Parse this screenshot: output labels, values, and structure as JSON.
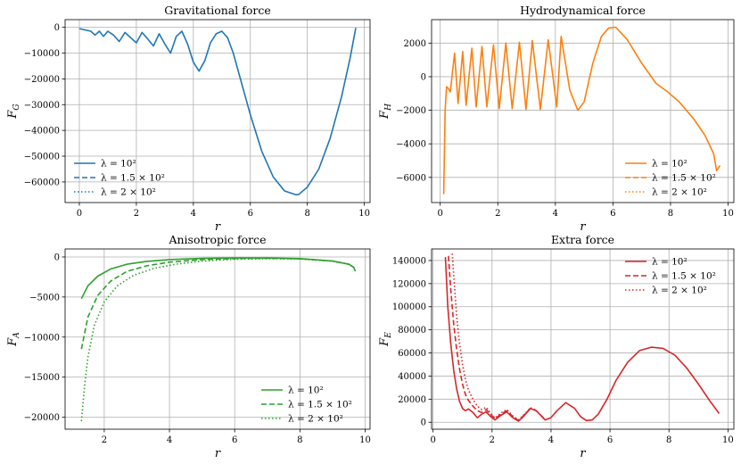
{
  "chart_data": [
    {
      "id": "gravitational",
      "type": "line",
      "title": "Gravitational force",
      "xlabel": "r",
      "ylabel": "F_G",
      "ylabel_main": "F",
      "ylabel_sub": "G",
      "xlim": [
        -0.5,
        10.2
      ],
      "ylim": [
        -68000,
        3000
      ],
      "xticks": [
        0,
        2,
        4,
        6,
        8,
        10
      ],
      "yticks": [
        0,
        -10000,
        -20000,
        -30000,
        -40000,
        -50000,
        -60000
      ],
      "grid": true,
      "color": "#1f77b4",
      "legend_location": "lower-left",
      "legend": [
        "λ = 10²",
        "λ = 1.5 × 10²",
        "λ = 2 × 10²"
      ],
      "series": [
        {
          "name": "λ = 10²",
          "style": "solid",
          "x": [
            0,
            0.2,
            0.4,
            0.55,
            0.7,
            0.85,
            1.0,
            1.2,
            1.4,
            1.6,
            1.8,
            2.0,
            2.2,
            2.4,
            2.6,
            2.8,
            3.0,
            3.2,
            3.4,
            3.6,
            3.8,
            4.0,
            4.2,
            4.4,
            4.6,
            4.8,
            5.0,
            5.2,
            5.4,
            5.6,
            5.8,
            6.0,
            6.4,
            6.8,
            7.2,
            7.6,
            7.7,
            8.0,
            8.4,
            8.8,
            9.2,
            9.5,
            9.7
          ],
          "y": [
            -500,
            -1000,
            -1500,
            -3000,
            -1500,
            -3500,
            -1500,
            -3000,
            -5500,
            -2000,
            -4000,
            -6000,
            -2000,
            -4500,
            -7200,
            -2500,
            -6500,
            -10000,
            -3500,
            -1500,
            -6500,
            -13500,
            -17000,
            -13000,
            -6000,
            -2500,
            -1500,
            -4000,
            -10000,
            -18000,
            -26000,
            -34000,
            -48000,
            -58000,
            -63500,
            -65000,
            -64800,
            -62000,
            -55000,
            -43000,
            -27000,
            -12000,
            -200
          ]
        }
      ]
    },
    {
      "id": "hydrodynamical",
      "type": "line",
      "title": "Hydrodynamical force",
      "xlabel": "r",
      "ylabel": "F_H",
      "ylabel_main": "F",
      "ylabel_sub": "H",
      "xlim": [
        -0.3,
        10.2
      ],
      "ylim": [
        -7500,
        3400
      ],
      "xticks": [
        0,
        2,
        4,
        6,
        8,
        10
      ],
      "yticks": [
        2000,
        0,
        -2000,
        -4000,
        -6000
      ],
      "grid": true,
      "color": "#ff7f0e",
      "legend_location": "lower-right",
      "legend": [
        "λ = 10²",
        "λ = 1.5 × 10²",
        "λ = 2 × 10²"
      ],
      "series": [
        {
          "name": "λ = 10²",
          "style": "solid",
          "x": [
            0.12,
            0.17,
            0.22,
            0.28,
            0.35,
            0.5,
            0.62,
            0.78,
            0.9,
            1.1,
            1.25,
            1.45,
            1.62,
            1.85,
            2.05,
            2.28,
            2.5,
            2.75,
            2.98,
            3.2,
            3.48,
            3.75,
            4.05,
            4.2,
            4.5,
            4.78,
            5.0,
            5.3,
            5.6,
            5.85,
            6.1,
            6.5,
            7.0,
            7.5,
            7.9,
            8.3,
            8.8,
            9.2,
            9.5,
            9.6,
            9.72
          ],
          "y": [
            -7000,
            -2000,
            -600,
            -700,
            -900,
            1400,
            -1600,
            1500,
            -1700,
            1700,
            -1800,
            1800,
            -1800,
            1900,
            -1900,
            2000,
            -1900,
            2050,
            -1950,
            2150,
            -1950,
            2200,
            -1800,
            2400,
            -800,
            -2000,
            -1500,
            800,
            2400,
            2900,
            2950,
            2200,
            800,
            -400,
            -900,
            -1500,
            -2500,
            -3500,
            -4600,
            -5600,
            -5300
          ]
        }
      ]
    },
    {
      "id": "anisotropic",
      "type": "line",
      "title": "Anisotropic force",
      "xlabel": "r",
      "ylabel": "F_A",
      "ylabel_main": "F",
      "ylabel_sub": "A",
      "xlim": [
        0.8,
        10.15
      ],
      "ylim": [
        -21500,
        1000
      ],
      "xticks": [
        2,
        4,
        6,
        8,
        10
      ],
      "yticks": [
        0,
        -5000,
        -10000,
        -15000,
        -20000
      ],
      "grid": true,
      "color": "#2ca02c",
      "legend_location": "lower-right",
      "legend": [
        "λ = 10²",
        "λ = 1.5 × 10²",
        "λ = 2 × 10²"
      ],
      "series": [
        {
          "name": "λ = 10²",
          "style": "solid",
          "x": [
            1.3,
            1.5,
            1.8,
            2.2,
            2.7,
            3.3,
            4.0,
            5.0,
            6.0,
            7.0,
            8.0,
            9.0,
            9.5,
            9.65,
            9.7
          ],
          "y": [
            -5200,
            -3600,
            -2400,
            -1500,
            -900,
            -550,
            -330,
            -180,
            -120,
            -120,
            -200,
            -500,
            -900,
            -1300,
            -1800
          ]
        },
        {
          "name": "λ = 1.5 × 10²",
          "style": "dashed",
          "x": [
            1.3,
            1.5,
            1.8,
            2.2,
            2.7,
            3.3,
            4.0,
            5.0,
            6.0,
            7.0,
            8.0,
            9.0,
            9.5,
            9.65
          ],
          "y": [
            -11500,
            -7500,
            -4800,
            -3000,
            -1800,
            -1100,
            -650,
            -330,
            -200,
            -170,
            -230,
            -520,
            -900,
            -1300
          ]
        },
        {
          "name": "λ = 2 × 10²",
          "style": "dotted",
          "x": [
            1.3,
            1.4,
            1.5,
            1.7,
            2.0,
            2.4,
            2.9,
            3.5,
            4.2,
            5.0,
            6.0,
            7.0,
            8.0,
            9.0,
            9.5,
            9.65
          ],
          "y": [
            -20500,
            -16000,
            -12500,
            -8500,
            -5600,
            -3600,
            -2300,
            -1450,
            -900,
            -520,
            -290,
            -210,
            -250,
            -530,
            -900,
            -1300
          ]
        }
      ]
    },
    {
      "id": "extra",
      "type": "line",
      "title": "Extra force",
      "xlabel": "r",
      "ylabel": "F_E",
      "ylabel_main": "F",
      "ylabel_sub": "E",
      "xlim": [
        -0.05,
        10.2
      ],
      "ylim": [
        -6000,
        150000
      ],
      "xticks": [
        0,
        2,
        4,
        6,
        8,
        10
      ],
      "yticks": [
        0,
        20000,
        40000,
        60000,
        80000,
        100000,
        120000,
        140000
      ],
      "grid": true,
      "color": "#d62728",
      "legend_location": "top-right",
      "legend": [
        "λ = 10²",
        "λ = 1.5 × 10²",
        "λ = 2 × 10²"
      ],
      "series": [
        {
          "name": "λ = 10²",
          "style": "solid",
          "x": [
            0.42,
            0.5,
            0.6,
            0.7,
            0.8,
            0.9,
            1.0,
            1.1,
            1.2,
            1.35,
            1.5,
            1.65,
            1.8,
            1.95,
            2.1,
            2.3,
            2.5,
            2.7,
            2.9,
            3.1,
            3.3,
            3.5,
            3.8,
            4.0,
            4.2,
            4.5,
            4.8,
            5.0,
            5.2,
            5.4,
            5.6,
            5.9,
            6.2,
            6.6,
            7.0,
            7.4,
            7.8,
            8.2,
            8.6,
            9.0,
            9.4,
            9.7
          ],
          "y": [
            143000,
            100000,
            68000,
            45000,
            29000,
            18000,
            12000,
            10000,
            11500,
            8500,
            4000,
            7000,
            9000,
            5000,
            2000,
            6000,
            9000,
            4000,
            1000,
            6000,
            12000,
            10000,
            2000,
            4000,
            10000,
            17000,
            12000,
            5000,
            1500,
            2000,
            7000,
            20000,
            36000,
            52000,
            62000,
            65000,
            64000,
            58000,
            47000,
            33000,
            18000,
            7500
          ]
        },
        {
          "name": "λ = 1.5 × 10²",
          "style": "dashed",
          "x": [
            0.52,
            0.6,
            0.7,
            0.8,
            0.9,
            1.0,
            1.1,
            1.2,
            1.35,
            1.5,
            1.65,
            1.8,
            1.95,
            2.1,
            2.3,
            2.5,
            2.7,
            2.9,
            3.1,
            3.3,
            3.5,
            3.8
          ],
          "y": [
            144000,
            115000,
            85000,
            63000,
            46000,
            33000,
            24000,
            19000,
            14000,
            10000,
            8500,
            11000,
            7000,
            3000,
            7000,
            10000,
            5000,
            1500,
            6500,
            12000,
            10000,
            2500
          ]
        },
        {
          "name": "λ = 2 × 10²",
          "style": "dotted",
          "x": [
            0.65,
            0.72,
            0.8,
            0.9,
            1.0,
            1.1,
            1.2,
            1.35,
            1.5,
            1.65,
            1.8,
            1.95,
            2.1,
            2.3,
            2.5,
            2.7,
            2.9,
            3.1,
            3.3,
            3.5
          ],
          "y": [
            146000,
            120000,
            92000,
            68000,
            50000,
            37000,
            28000,
            20000,
            14000,
            11000,
            13000,
            8000,
            3500,
            8000,
            11000,
            5500,
            2000,
            7000,
            12500,
            10500
          ]
        }
      ]
    }
  ]
}
